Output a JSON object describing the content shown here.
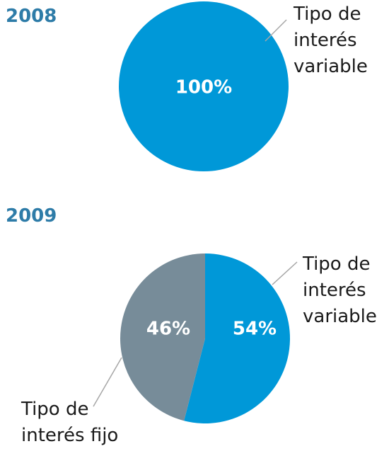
{
  "chart_data": [
    {
      "type": "pie",
      "title": "2008",
      "categories": [
        "Tipo de interés variable"
      ],
      "values": [
        100
      ],
      "value_labels": [
        "100%"
      ],
      "colors": [
        "#0098d8"
      ]
    },
    {
      "type": "pie",
      "title": "2009",
      "categories": [
        "Tipo de interés variable",
        "Tipo de interés fijo"
      ],
      "values": [
        54,
        46
      ],
      "value_labels": [
        "54%",
        "46%"
      ],
      "colors": [
        "#0098d8",
        "#778c99"
      ]
    }
  ]
}
